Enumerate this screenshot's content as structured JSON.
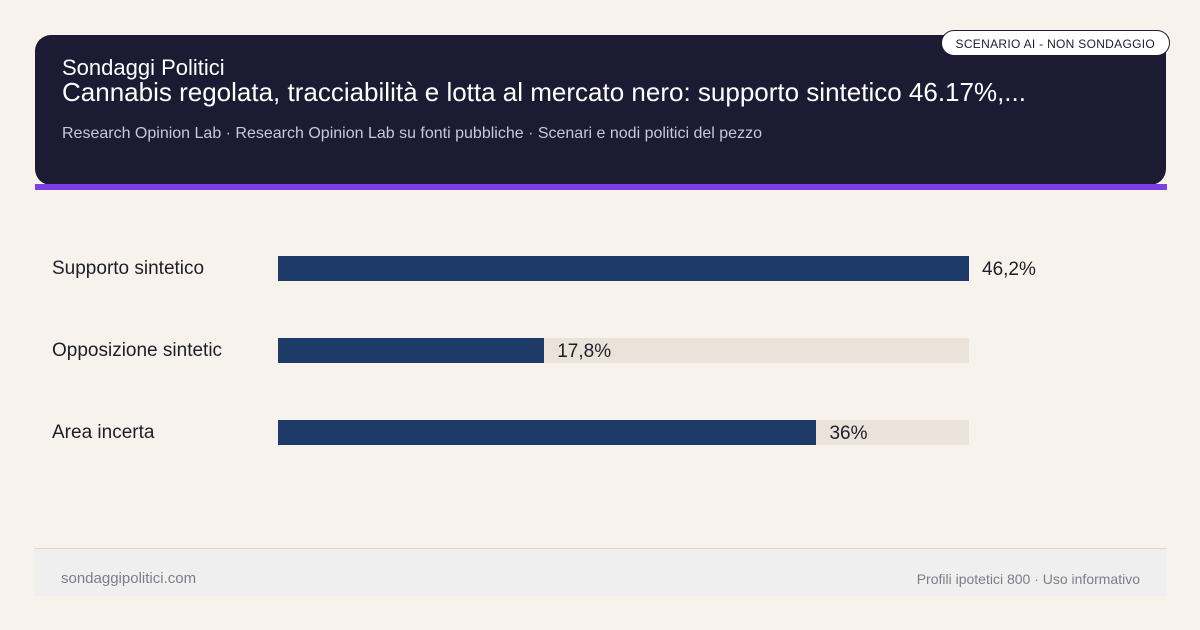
{
  "header": {
    "brand": "Sondaggi Politici",
    "title": "Cannabis regolata, tracciabilità e lotta al mercato nero: supporto sintetico 46.17%,...",
    "subtitle": "Research Opinion Lab · Research Opinion Lab su fonti pubbliche · Scenari e nodi politici del pezzo",
    "badge": "SCENARIO AI - NON SONDAGGIO"
  },
  "chart_data": {
    "type": "bar",
    "orientation": "horizontal",
    "categories": [
      "Supporto sintetico",
      "Opposizione sintetic",
      "Area incerta"
    ],
    "values": [
      46.2,
      17.8,
      36
    ],
    "value_labels": [
      "46,2%",
      "17,8%",
      "36%"
    ],
    "xlim": [
      0,
      46.2
    ],
    "grid": false,
    "colors": {
      "fill": "#1e3a68",
      "track": "#ebe3da"
    }
  },
  "footer": {
    "site": "sondaggipolitici.com",
    "note": "Profili ipotetici 800 · Uso informativo"
  }
}
